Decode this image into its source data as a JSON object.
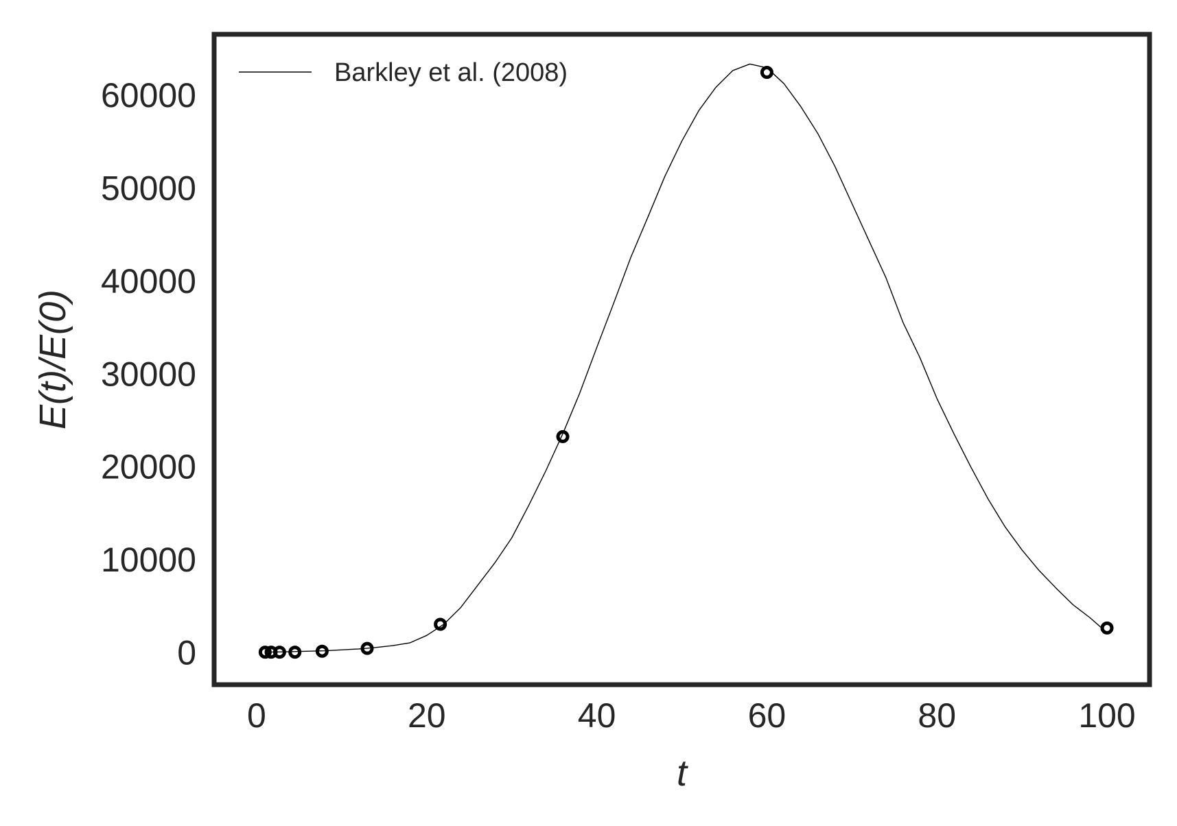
{
  "colors": {
    "frame": "#262626",
    "line": "#000000",
    "marker": "#000000",
    "text": "#262626",
    "background": "#ffffff"
  },
  "chart_data": {
    "type": "line",
    "xlabel": "t",
    "ylabel": "E(t)/E(0)",
    "xlim": [
      -5,
      105
    ],
    "ylim": [
      -3500,
      66500
    ],
    "xticks": [
      0,
      20,
      40,
      60,
      80,
      100
    ],
    "xtick_labels": [
      "0",
      "20",
      "40",
      "60",
      "80",
      "100"
    ],
    "yticks": [
      0,
      10000,
      20000,
      30000,
      40000,
      50000,
      60000
    ],
    "ytick_labels": [
      "0",
      "10000",
      "20000",
      "30000",
      "40000",
      "50000",
      "60000"
    ],
    "grid": false,
    "legend": {
      "position": "top-left",
      "entries": [
        "Barkley et al. (2008)"
      ]
    },
    "series": [
      {
        "name": "Barkley et al. (2008)",
        "kind": "line",
        "x": [
          1,
          4,
          8,
          12,
          14,
          16,
          18,
          20,
          22,
          24,
          26,
          28,
          30,
          32,
          34,
          36,
          38,
          40,
          42,
          44,
          46,
          48,
          50,
          52,
          54,
          56,
          58,
          60,
          62,
          64,
          66,
          68,
          70,
          72,
          74,
          76,
          78,
          80,
          82,
          84,
          86,
          88,
          90,
          92,
          94,
          96,
          98,
          100
        ],
        "y": [
          0,
          50,
          150,
          350,
          500,
          700,
          1000,
          1800,
          3000,
          4800,
          7200,
          9600,
          12300,
          15800,
          19500,
          23500,
          27900,
          32800,
          37600,
          42500,
          46800,
          51200,
          55000,
          58300,
          60800,
          62600,
          63300,
          62900,
          61200,
          58700,
          55800,
          52300,
          48300,
          44300,
          40300,
          35500,
          31700,
          27300,
          23500,
          19900,
          16500,
          13500,
          11000,
          8800,
          6900,
          5100,
          3700,
          2100
        ]
      },
      {
        "name": "",
        "kind": "scatter",
        "x": [
          1,
          1.7,
          2.7,
          4.5,
          7.7,
          13,
          21.6,
          36,
          60,
          100
        ],
        "y": [
          0,
          0,
          0,
          0,
          100,
          400,
          3000,
          23200,
          62400,
          2600
        ]
      }
    ]
  }
}
